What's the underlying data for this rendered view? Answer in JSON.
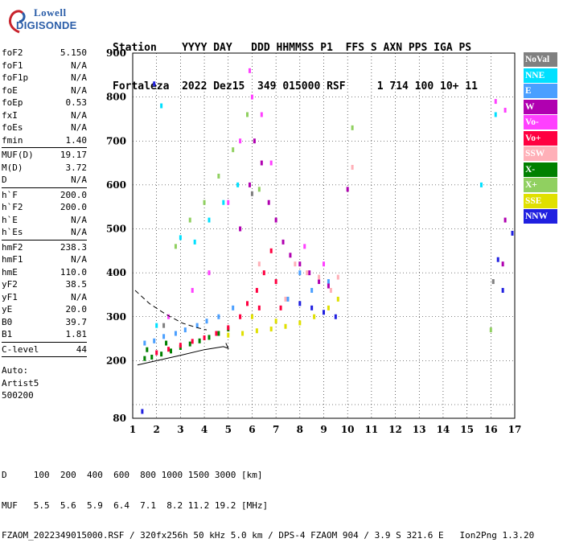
{
  "logo": {
    "line1": "Lowell",
    "line2": "DIGISONDE"
  },
  "header": {
    "line1": "Station    YYYY DAY   DDD HHMMSS P1  FFS S AXN PPS IGA PS",
    "line2": "Fortaleza  2022 Dez15  349 015000 RSF     1 714 100 10+ 11"
  },
  "params": {
    "group1": [
      {
        "label": "foF2",
        "value": "5.150"
      },
      {
        "label": "foF1",
        "value": "N/A"
      },
      {
        "label": "foF1p",
        "value": "N/A"
      },
      {
        "label": "foE",
        "value": "N/A"
      },
      {
        "label": "foEp",
        "value": "0.53"
      },
      {
        "label": "fxI",
        "value": "N/A"
      },
      {
        "label": "foEs",
        "value": "N/A"
      },
      {
        "label": "fmin",
        "value": "1.40"
      }
    ],
    "group2": [
      {
        "label": "MUF(D)",
        "value": "19.17"
      },
      {
        "label": "M(D)",
        "value": "3.72"
      },
      {
        "label": "D",
        "value": "N/A"
      }
    ],
    "group3": [
      {
        "label": "h`F",
        "value": "200.0"
      },
      {
        "label": "h`F2",
        "value": "200.0"
      },
      {
        "label": "h`E",
        "value": "N/A"
      },
      {
        "label": "h`Es",
        "value": "N/A"
      }
    ],
    "group4": [
      {
        "label": "hmF2",
        "value": "238.3"
      },
      {
        "label": "hmF1",
        "value": "N/A"
      },
      {
        "label": "hmE",
        "value": "110.0"
      },
      {
        "label": "yF2",
        "value": "38.5"
      },
      {
        "label": "yF1",
        "value": "N/A"
      },
      {
        "label": "yE",
        "value": "20.0"
      },
      {
        "label": "B0",
        "value": "39.7"
      },
      {
        "label": "B1",
        "value": "1.81"
      }
    ],
    "group5": [
      {
        "label": "C-level",
        "value": "44"
      }
    ],
    "autoscale": {
      "line1": "Auto:",
      "line2": "Artist5",
      "line3": "500200"
    }
  },
  "legend": [
    {
      "label": "NoVal",
      "color": "#808080",
      "text_color": "#ffffff"
    },
    {
      "label": "NNE",
      "color": "#00e0ff",
      "text_color": "#ffffff"
    },
    {
      "label": "E",
      "color": "#4a9fff",
      "text_color": "#ffffff"
    },
    {
      "label": "W",
      "color": "#b000b0",
      "text_color": "#ffffff"
    },
    {
      "label": "Vo-",
      "color": "#ff40ff",
      "text_color": "#ffffff"
    },
    {
      "label": "Vo+",
      "color": "#ff0040",
      "text_color": "#ffffff"
    },
    {
      "label": "SSW",
      "color": "#ffb0b8",
      "text_color": "#ffffff"
    },
    {
      "label": "X-",
      "color": "#008000",
      "text_color": "#ffffff"
    },
    {
      "label": "X+",
      "color": "#90d060",
      "text_color": "#ffffff"
    },
    {
      "label": "SSE",
      "color": "#e0e000",
      "text_color": "#ffffff"
    },
    {
      "label": "NNW",
      "color": "#2020e0",
      "text_color": "#ffffff"
    }
  ],
  "footer": {
    "line1": "D     100  200  400  600  800 1000 1500 3000 [km]",
    "line2": "MUF   5.5  5.6  5.9  6.4  7.1  8.2 11.2 19.2 [MHz]",
    "line3": "FZAOM_2022349015000.RSF / 320fx256h 50 kHz 5.0 km / DPS-4 FZAOM 904 / 3.9 S 321.6 E   Ion2Png 1.3.20"
  },
  "chart_data": {
    "type": "scatter",
    "title": "",
    "xlabel": "",
    "ylabel": "",
    "xlim": [
      1,
      17
    ],
    "ylim": [
      80,
      900
    ],
    "xticks": [
      1,
      2,
      3,
      4,
      5,
      6,
      7,
      8,
      9,
      10,
      11,
      12,
      13,
      14,
      15,
      16,
      17
    ],
    "yticks": [
      80,
      100,
      200,
      300,
      400,
      500,
      600,
      700,
      800,
      900
    ],
    "grid": "dotted",
    "series": [
      {
        "name": "X-",
        "color": "#008000",
        "points": [
          [
            1.5,
            205
          ],
          [
            1.8,
            208
          ],
          [
            2.2,
            215
          ],
          [
            2.6,
            222
          ],
          [
            3.0,
            230
          ],
          [
            3.4,
            238
          ],
          [
            3.8,
            245
          ],
          [
            4.2,
            253
          ],
          [
            4.6,
            262
          ],
          [
            5.0,
            272
          ],
          [
            1.6,
            225
          ],
          [
            2.4,
            240
          ]
        ]
      },
      {
        "name": "Vo+",
        "color": "#ff0040",
        "points": [
          [
            2.0,
            218
          ],
          [
            2.5,
            226
          ],
          [
            3.0,
            235
          ],
          [
            3.5,
            244
          ],
          [
            4.0,
            252
          ],
          [
            4.5,
            262
          ],
          [
            5.0,
            275
          ],
          [
            5.5,
            300
          ],
          [
            5.8,
            330
          ],
          [
            6.2,
            360
          ],
          [
            6.5,
            400
          ],
          [
            6.8,
            450
          ],
          [
            7.0,
            380
          ],
          [
            7.2,
            320
          ],
          [
            6.3,
            320
          ]
        ]
      },
      {
        "name": "E",
        "color": "#4a9fff",
        "points": [
          [
            1.5,
            240
          ],
          [
            1.9,
            245
          ],
          [
            2.3,
            255
          ],
          [
            2.8,
            262
          ],
          [
            3.2,
            270
          ],
          [
            3.7,
            280
          ],
          [
            4.1,
            290
          ],
          [
            4.6,
            300
          ],
          [
            5.2,
            320
          ],
          [
            7.5,
            340
          ],
          [
            8.5,
            360
          ],
          [
            9.2,
            380
          ],
          [
            8.0,
            400
          ]
        ]
      },
      {
        "name": "SSE",
        "color": "#e0e000",
        "points": [
          [
            5.0,
            258
          ],
          [
            5.6,
            262
          ],
          [
            6.2,
            268
          ],
          [
            6.8,
            272
          ],
          [
            7.4,
            278
          ],
          [
            8.0,
            286
          ],
          [
            8.6,
            300
          ],
          [
            9.2,
            320
          ],
          [
            9.6,
            340
          ],
          [
            6.0,
            300
          ],
          [
            7.0,
            290
          ]
        ]
      },
      {
        "name": "W",
        "color": "#b000b0",
        "points": [
          [
            5.5,
            500
          ],
          [
            5.9,
            600
          ],
          [
            6.1,
            700
          ],
          [
            6.4,
            650
          ],
          [
            6.7,
            560
          ],
          [
            7.0,
            520
          ],
          [
            7.3,
            470
          ],
          [
            7.6,
            440
          ],
          [
            8.0,
            420
          ],
          [
            8.4,
            400
          ],
          [
            8.8,
            380
          ],
          [
            9.2,
            370
          ],
          [
            10.0,
            590
          ],
          [
            16.5,
            420
          ],
          [
            16.6,
            520
          ]
        ]
      },
      {
        "name": "Vo-",
        "color": "#ff40ff",
        "points": [
          [
            2.5,
            300
          ],
          [
            3.5,
            360
          ],
          [
            4.2,
            400
          ],
          [
            5.0,
            560
          ],
          [
            5.5,
            700
          ],
          [
            5.9,
            860
          ],
          [
            6.0,
            800
          ],
          [
            6.4,
            760
          ],
          [
            6.8,
            650
          ],
          [
            8.2,
            460
          ],
          [
            9.0,
            420
          ],
          [
            16.2,
            790
          ],
          [
            16.6,
            770
          ]
        ]
      },
      {
        "name": "SSW",
        "color": "#ffb0b8",
        "points": [
          [
            7.8,
            420
          ],
          [
            8.3,
            400
          ],
          [
            8.8,
            390
          ],
          [
            9.3,
            360
          ],
          [
            9.6,
            390
          ],
          [
            10.2,
            640
          ],
          [
            6.3,
            420
          ],
          [
            7.4,
            340
          ]
        ]
      },
      {
        "name": "X+",
        "color": "#90d060",
        "points": [
          [
            2.8,
            460
          ],
          [
            3.4,
            520
          ],
          [
            4.0,
            560
          ],
          [
            4.6,
            620
          ],
          [
            5.2,
            680
          ],
          [
            5.8,
            760
          ],
          [
            6.3,
            590
          ],
          [
            10.2,
            730
          ],
          [
            16.0,
            270
          ]
        ]
      },
      {
        "name": "NNE",
        "color": "#00e0ff",
        "points": [
          [
            2.0,
            280
          ],
          [
            3.0,
            480
          ],
          [
            3.6,
            470
          ],
          [
            4.2,
            520
          ],
          [
            4.8,
            560
          ],
          [
            5.4,
            600
          ],
          [
            2.2,
            780
          ],
          [
            15.6,
            600
          ],
          [
            16.2,
            760
          ]
        ]
      },
      {
        "name": "NNW",
        "color": "#2020e0",
        "points": [
          [
            1.9,
            830
          ],
          [
            8.0,
            330
          ],
          [
            8.5,
            320
          ],
          [
            9.0,
            310
          ],
          [
            9.5,
            300
          ],
          [
            16.3,
            430
          ],
          [
            16.5,
            360
          ],
          [
            16.9,
            490
          ],
          [
            1.4,
            90
          ]
        ]
      },
      {
        "name": "NoVal",
        "color": "#808080",
        "points": [
          [
            2.3,
            280
          ],
          [
            6.0,
            580
          ],
          [
            16.1,
            380
          ]
        ]
      }
    ],
    "profile_curve": {
      "style": "solid",
      "points": [
        [
          1.2,
          190
        ],
        [
          2.0,
          200
        ],
        [
          3.0,
          212
        ],
        [
          4.0,
          225
        ],
        [
          4.8,
          232
        ],
        [
          5.0,
          228
        ],
        [
          4.9,
          240
        ]
      ]
    },
    "profile_dashed": {
      "style": "dashed",
      "points": [
        [
          1.1,
          360
        ],
        [
          1.7,
          330
        ],
        [
          2.4,
          305
        ],
        [
          3.1,
          285
        ],
        [
          3.7,
          275
        ],
        [
          4.1,
          270
        ]
      ]
    }
  }
}
